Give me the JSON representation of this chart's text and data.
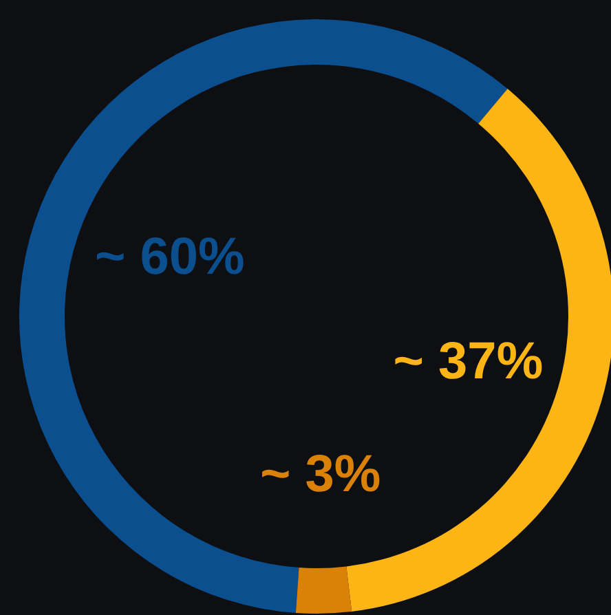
{
  "chart_data": {
    "type": "donut",
    "categories": [
      null,
      null,
      null
    ],
    "values": [
      60,
      37,
      3
    ],
    "colors": [
      "#0b4f8f",
      "#fdb515",
      "#d98207"
    ],
    "value_labels": [
      "~ 60%",
      "~ 37%",
      "~ 3%"
    ],
    "legend": false
  }
}
